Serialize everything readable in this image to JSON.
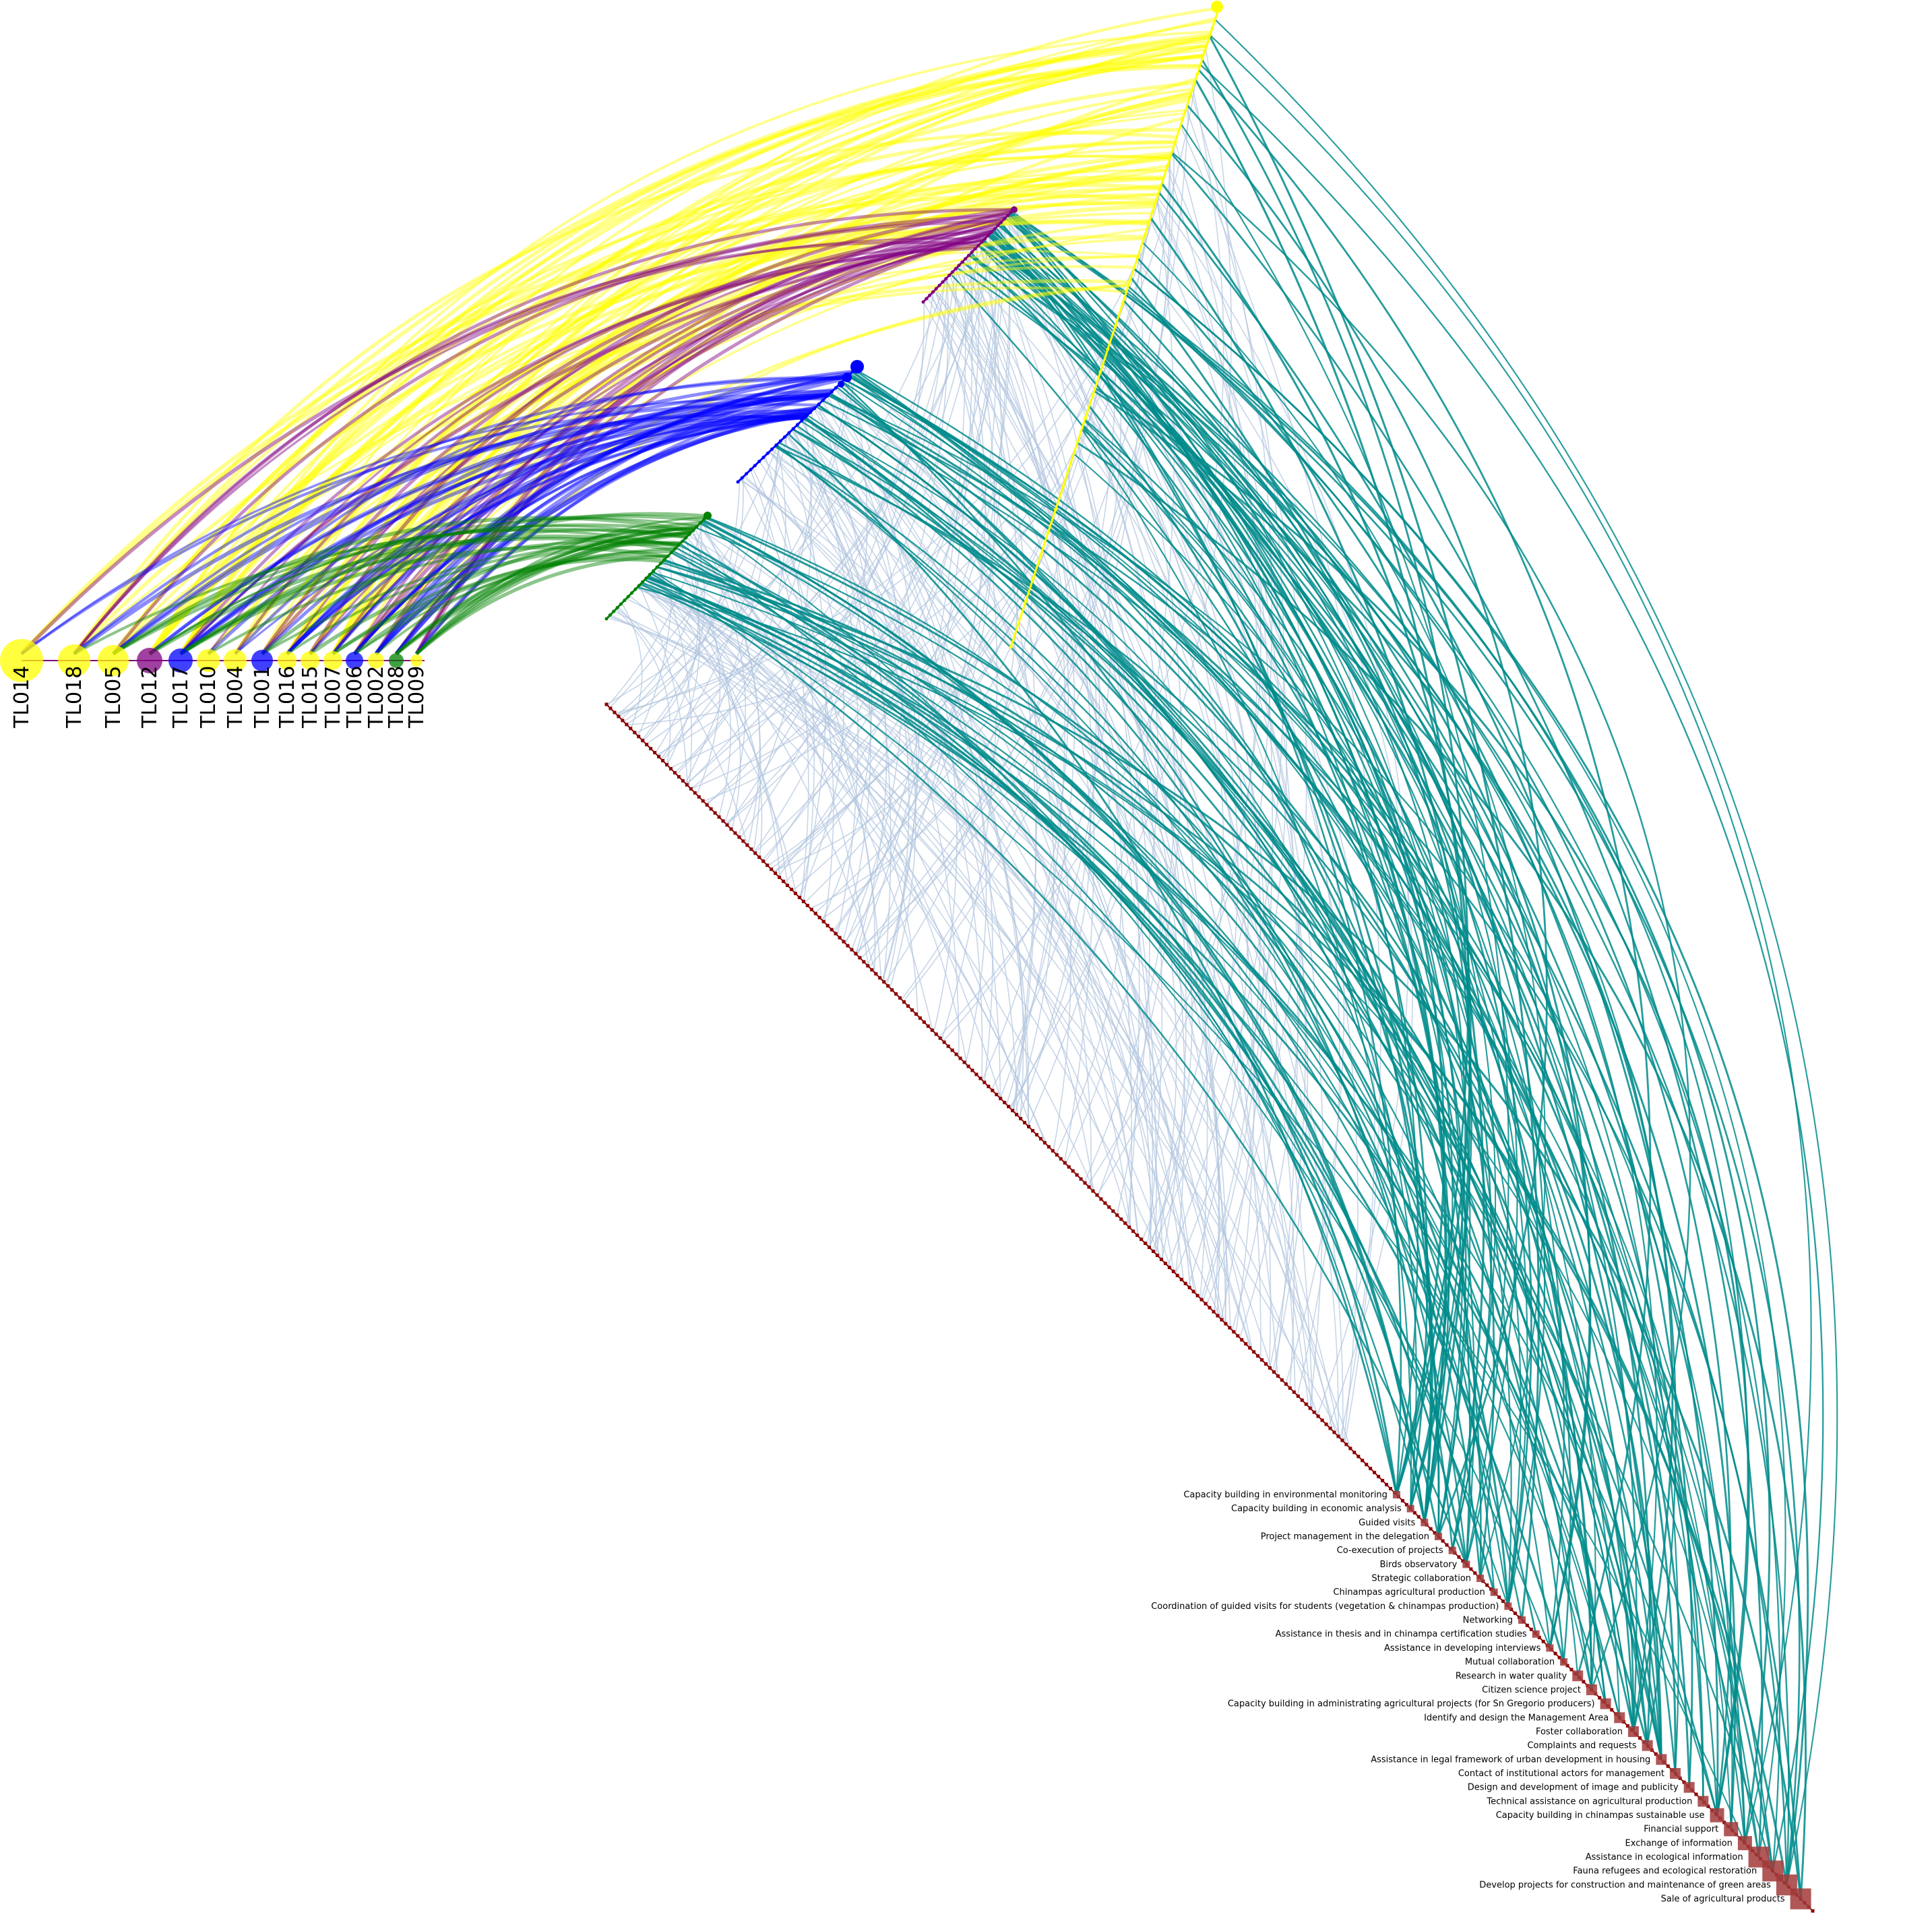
{
  "colors": {
    "yellow": "#ffff00",
    "purple": "#800080",
    "blue": "#0000ff",
    "green": "#008000",
    "teal": "#008b8b",
    "lightblue": "#b0c4de",
    "darkred": "#8b0000",
    "square": "#a23b3b"
  },
  "actors": [
    {
      "id": "TL014",
      "group": "yellow",
      "size": 32
    },
    {
      "id": "TL018",
      "group": "yellow",
      "size": 24
    },
    {
      "id": "TL005",
      "group": "yellow",
      "size": 23
    },
    {
      "id": "TL012",
      "group": "purple",
      "size": 19
    },
    {
      "id": "TL017",
      "group": "blue",
      "size": 18
    },
    {
      "id": "TL010",
      "group": "yellow",
      "size": 17
    },
    {
      "id": "TL004",
      "group": "yellow",
      "size": 17
    },
    {
      "id": "TL001",
      "group": "blue",
      "size": 16
    },
    {
      "id": "TL016",
      "group": "yellow",
      "size": 14
    },
    {
      "id": "TL015",
      "group": "yellow",
      "size": 14
    },
    {
      "id": "TL007",
      "group": "yellow",
      "size": 14
    },
    {
      "id": "TL006",
      "group": "blue",
      "size": 13
    },
    {
      "id": "TL002",
      "group": "yellow",
      "size": 12
    },
    {
      "id": "TL008",
      "group": "green",
      "size": 11
    },
    {
      "id": "TL009",
      "group": "yellow",
      "size": 9
    }
  ],
  "activities": [
    {
      "label": "Capacity building in environmental monitoring",
      "weight": 1
    },
    {
      "label": "Capacity building in economic analysis",
      "weight": 1
    },
    {
      "label": "Guided visits",
      "weight": 1
    },
    {
      "label": "Project management in the delegation",
      "weight": 1
    },
    {
      "label": "Co-execution of projects",
      "weight": 1
    },
    {
      "label": "Birds observatory",
      "weight": 1
    },
    {
      "label": "Strategic collaboration",
      "weight": 1
    },
    {
      "label": "Chinampas agricultural production",
      "weight": 1
    },
    {
      "label": "Coordination of guided visits for students (vegetation & chinampas production)",
      "weight": 1
    },
    {
      "label": "Networking",
      "weight": 1
    },
    {
      "label": "Assistance in thesis and in chinampa certification studies",
      "weight": 1
    },
    {
      "label": "Assistance in developing interviews",
      "weight": 1
    },
    {
      "label": "Mutual collaboration",
      "weight": 1
    },
    {
      "label": "Research in water quality",
      "weight": 2
    },
    {
      "label": "Citizen science project",
      "weight": 2
    },
    {
      "label": "Capacity building in administrating agricultural projects (for Sn Gregorio producers)",
      "weight": 2
    },
    {
      "label": "Identify and design the Management Area",
      "weight": 2
    },
    {
      "label": "Foster collaboration",
      "weight": 2
    },
    {
      "label": "Complaints and requests",
      "weight": 2
    },
    {
      "label": "Assistance in legal framework of urban development in housing",
      "weight": 2
    },
    {
      "label": "Contact of institutional actors for management",
      "weight": 2
    },
    {
      "label": "Design and development of image and publicity",
      "weight": 2
    },
    {
      "label": "Technical assistance on agricultural production",
      "weight": 2
    },
    {
      "label": "Capacity building in chinampas sustainable use",
      "weight": 3
    },
    {
      "label": "Financial support",
      "weight": 3
    },
    {
      "label": "Exchange of information",
      "weight": 3
    },
    {
      "label": "Assistance in ecological information",
      "weight": 5
    },
    {
      "label": "Fauna refugees and ecological restoration",
      "weight": 5
    },
    {
      "label": "Develop projects for construction and maintenance of green areas",
      "weight": 5
    },
    {
      "label": "Sale of agricultural products",
      "weight": 5
    }
  ]
}
